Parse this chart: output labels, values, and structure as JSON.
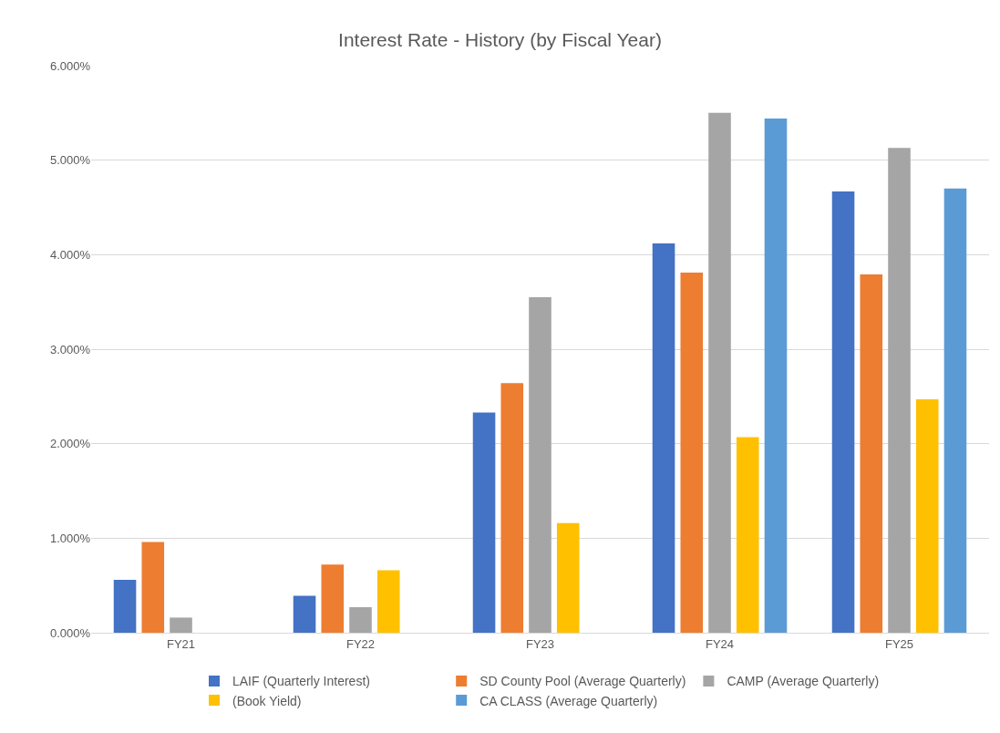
{
  "chart_data": {
    "type": "bar",
    "title": "Interest Rate - History (by Fiscal Year)",
    "categories": [
      "FY21",
      "FY22",
      "FY23",
      "FY24",
      "FY25"
    ],
    "series": [
      {
        "name": "LAIF (Quarterly Interest)",
        "color": "#4472c4",
        "values": [
          0.56,
          0.39,
          2.33,
          4.12,
          4.67
        ]
      },
      {
        "name": "SD County Pool (Average Quarterly)",
        "color": "#ed7d31",
        "values": [
          0.96,
          0.72,
          2.64,
          3.81,
          3.79
        ]
      },
      {
        "name": "CAMP (Average Quarterly)",
        "color": "#a5a5a5",
        "values": [
          0.16,
          0.27,
          3.55,
          5.5,
          5.13
        ]
      },
      {
        "name": "(Book Yield)",
        "color": "#ffc000",
        "values": [
          null,
          0.66,
          1.16,
          2.07,
          2.47
        ]
      },
      {
        "name": "CA CLASS (Average Quarterly)",
        "color": "#5b9bd5",
        "values": [
          null,
          null,
          null,
          5.44,
          4.7
        ]
      }
    ],
    "ylim": [
      0,
      6
    ],
    "yticks": [
      {
        "value": 0,
        "label": "0.000%"
      },
      {
        "value": 1,
        "label": "1.000%"
      },
      {
        "value": 2,
        "label": "2.000%"
      },
      {
        "value": 3,
        "label": "3.000%"
      },
      {
        "value": 4,
        "label": "4.000%"
      },
      {
        "value": 5,
        "label": "5.000%"
      },
      {
        "value": 6,
        "label": "6.000%"
      }
    ],
    "grid": "y",
    "legend": "bottom"
  }
}
